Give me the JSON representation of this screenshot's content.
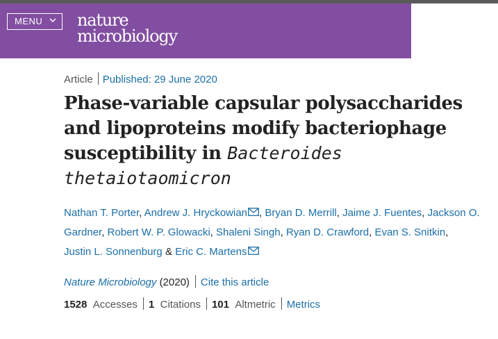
{
  "header": {
    "menu_label": "MENU",
    "logo_line1": "nature",
    "logo_line2": "microbiology"
  },
  "article": {
    "type": "Article",
    "published": "Published: 29 June 2020",
    "title_plain": "Phase-variable capsular polysaccharides and lipoproteins modify bacteriophage susceptibility in",
    "title_italic_1": "Bacteroides",
    "title_italic_2": "thetaiotaomicron"
  },
  "authors": [
    "Nathan T. Porter",
    "Andrew J. Hryckowian",
    "Bryan D. Merrill",
    "Jaime J. Fuentes",
    "Jackson O. Gardner",
    "Robert W. P. Glowacki",
    "Shaleni Singh",
    "Ryan D. Crawford",
    "Evan S. Snitkin",
    "Justin L. Sonnenburg",
    "Eric C. Martens"
  ],
  "authors_connector": "&",
  "citation": {
    "journal": "Nature Microbiology",
    "year": "(2020)",
    "cite_label": "Cite this article"
  },
  "metrics": {
    "accesses_value": "1528",
    "accesses_label": "Accesses",
    "citations_value": "1",
    "citations_label": "Citations",
    "altmetric_value": "101",
    "altmetric_label": "Altmetric",
    "metrics_link": "Metrics"
  },
  "colors": {
    "header_bg": "#824ea1",
    "link": "#1b6fa8"
  },
  "icons": {
    "menu_chevron": "chevron-down-icon",
    "author_contact": "envelope-icon"
  }
}
